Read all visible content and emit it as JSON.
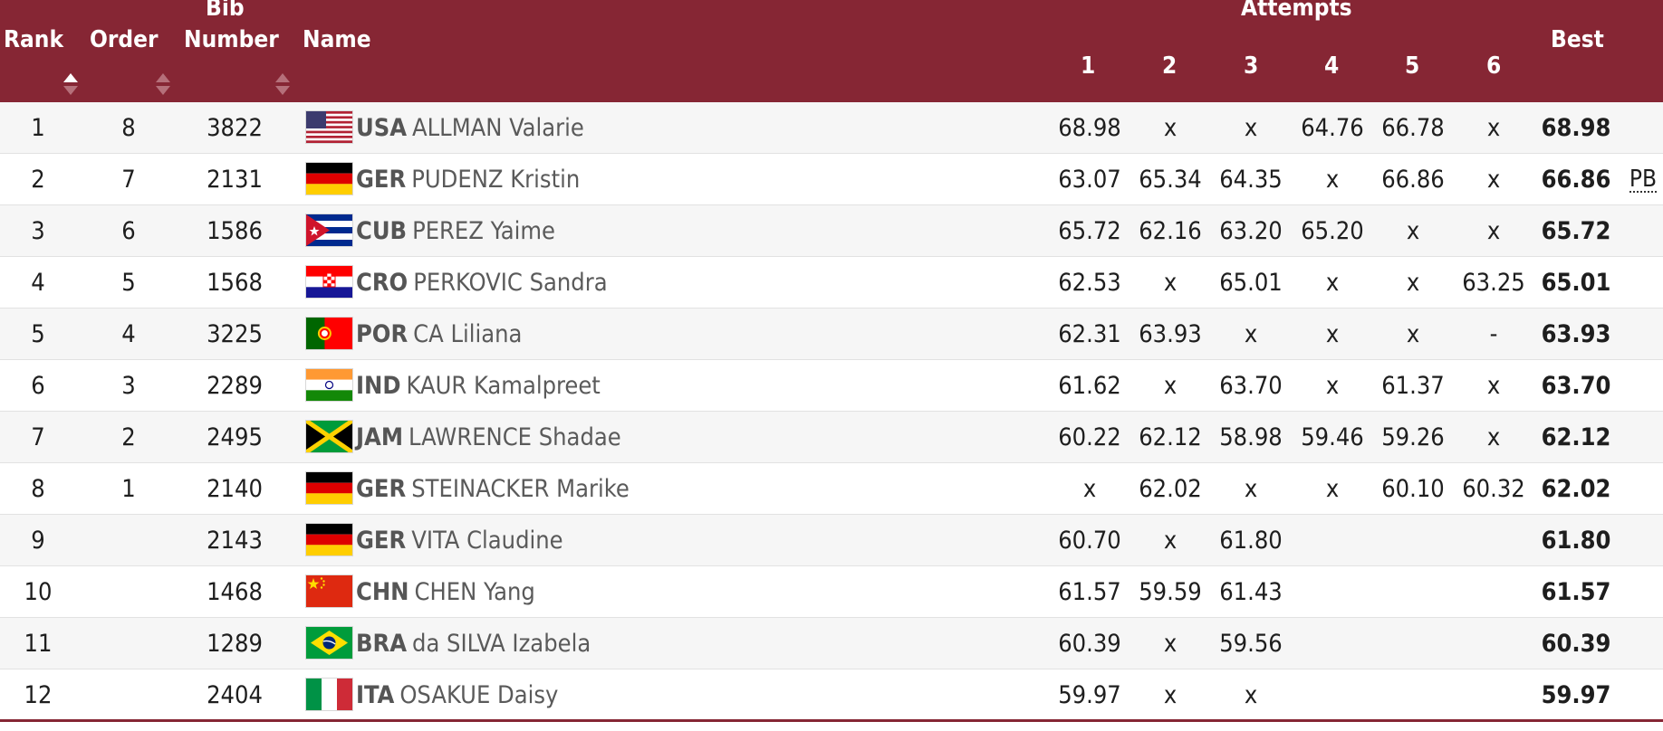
{
  "header": {
    "rank": "Rank",
    "order": "Order",
    "bib_line1": "Bib",
    "bib_line2": "Number",
    "name": "Name",
    "attempts": "Attempts",
    "attempt_numbers": [
      "1",
      "2",
      "3",
      "4",
      "5",
      "6"
    ],
    "best": "Best"
  },
  "colors": {
    "header_bg": "#862634",
    "row_alt": "#f6f6f6"
  },
  "rows": [
    {
      "rank": "1",
      "order": "8",
      "bib": "3822",
      "flag": "usa-flag",
      "country": "USA",
      "name": "ALLMAN Valarie",
      "attempts": [
        "68.98",
        "x",
        "x",
        "64.76",
        "66.78",
        "x"
      ],
      "best": "68.98",
      "record": ""
    },
    {
      "rank": "2",
      "order": "7",
      "bib": "2131",
      "flag": "ger-flag",
      "country": "GER",
      "name": "PUDENZ Kristin",
      "attempts": [
        "63.07",
        "65.34",
        "64.35",
        "x",
        "66.86",
        "x"
      ],
      "best": "66.86",
      "record": "PB"
    },
    {
      "rank": "3",
      "order": "6",
      "bib": "1586",
      "flag": "cub-flag",
      "country": "CUB",
      "name": "PEREZ Yaime",
      "attempts": [
        "65.72",
        "62.16",
        "63.20",
        "65.20",
        "x",
        "x"
      ],
      "best": "65.72",
      "record": ""
    },
    {
      "rank": "4",
      "order": "5",
      "bib": "1568",
      "flag": "cro-flag",
      "country": "CRO",
      "name": "PERKOVIC Sandra",
      "attempts": [
        "62.53",
        "x",
        "65.01",
        "x",
        "x",
        "63.25"
      ],
      "best": "65.01",
      "record": ""
    },
    {
      "rank": "5",
      "order": "4",
      "bib": "3225",
      "flag": "por-flag",
      "country": "POR",
      "name": "CA Liliana",
      "attempts": [
        "62.31",
        "63.93",
        "x",
        "x",
        "x",
        "-"
      ],
      "best": "63.93",
      "record": ""
    },
    {
      "rank": "6",
      "order": "3",
      "bib": "2289",
      "flag": "ind-flag",
      "country": "IND",
      "name": "KAUR Kamalpreet",
      "attempts": [
        "61.62",
        "x",
        "63.70",
        "x",
        "61.37",
        "x"
      ],
      "best": "63.70",
      "record": ""
    },
    {
      "rank": "7",
      "order": "2",
      "bib": "2495",
      "flag": "jam-flag",
      "country": "JAM",
      "name": "LAWRENCE Shadae",
      "attempts": [
        "60.22",
        "62.12",
        "58.98",
        "59.46",
        "59.26",
        "x"
      ],
      "best": "62.12",
      "record": ""
    },
    {
      "rank": "8",
      "order": "1",
      "bib": "2140",
      "flag": "ger-flag",
      "country": "GER",
      "name": "STEINACKER Marike",
      "attempts": [
        "x",
        "62.02",
        "x",
        "x",
        "60.10",
        "60.32"
      ],
      "best": "62.02",
      "record": ""
    },
    {
      "rank": "9",
      "order": "",
      "bib": "2143",
      "flag": "ger-flag",
      "country": "GER",
      "name": "VITA Claudine",
      "attempts": [
        "60.70",
        "x",
        "61.80",
        "",
        "",
        ""
      ],
      "best": "61.80",
      "record": ""
    },
    {
      "rank": "10",
      "order": "",
      "bib": "1468",
      "flag": "chn-flag",
      "country": "CHN",
      "name": "CHEN Yang",
      "attempts": [
        "61.57",
        "59.59",
        "61.43",
        "",
        "",
        ""
      ],
      "best": "61.57",
      "record": ""
    },
    {
      "rank": "11",
      "order": "",
      "bib": "1289",
      "flag": "bra-flag",
      "country": "BRA",
      "name": "da SILVA Izabela",
      "attempts": [
        "60.39",
        "x",
        "59.56",
        "",
        "",
        ""
      ],
      "best": "60.39",
      "record": ""
    },
    {
      "rank": "12",
      "order": "",
      "bib": "2404",
      "flag": "ita-flag",
      "country": "ITA",
      "name": "OSAKUE Daisy",
      "attempts": [
        "59.97",
        "x",
        "x",
        "",
        "",
        ""
      ],
      "best": "59.97",
      "record": ""
    }
  ]
}
